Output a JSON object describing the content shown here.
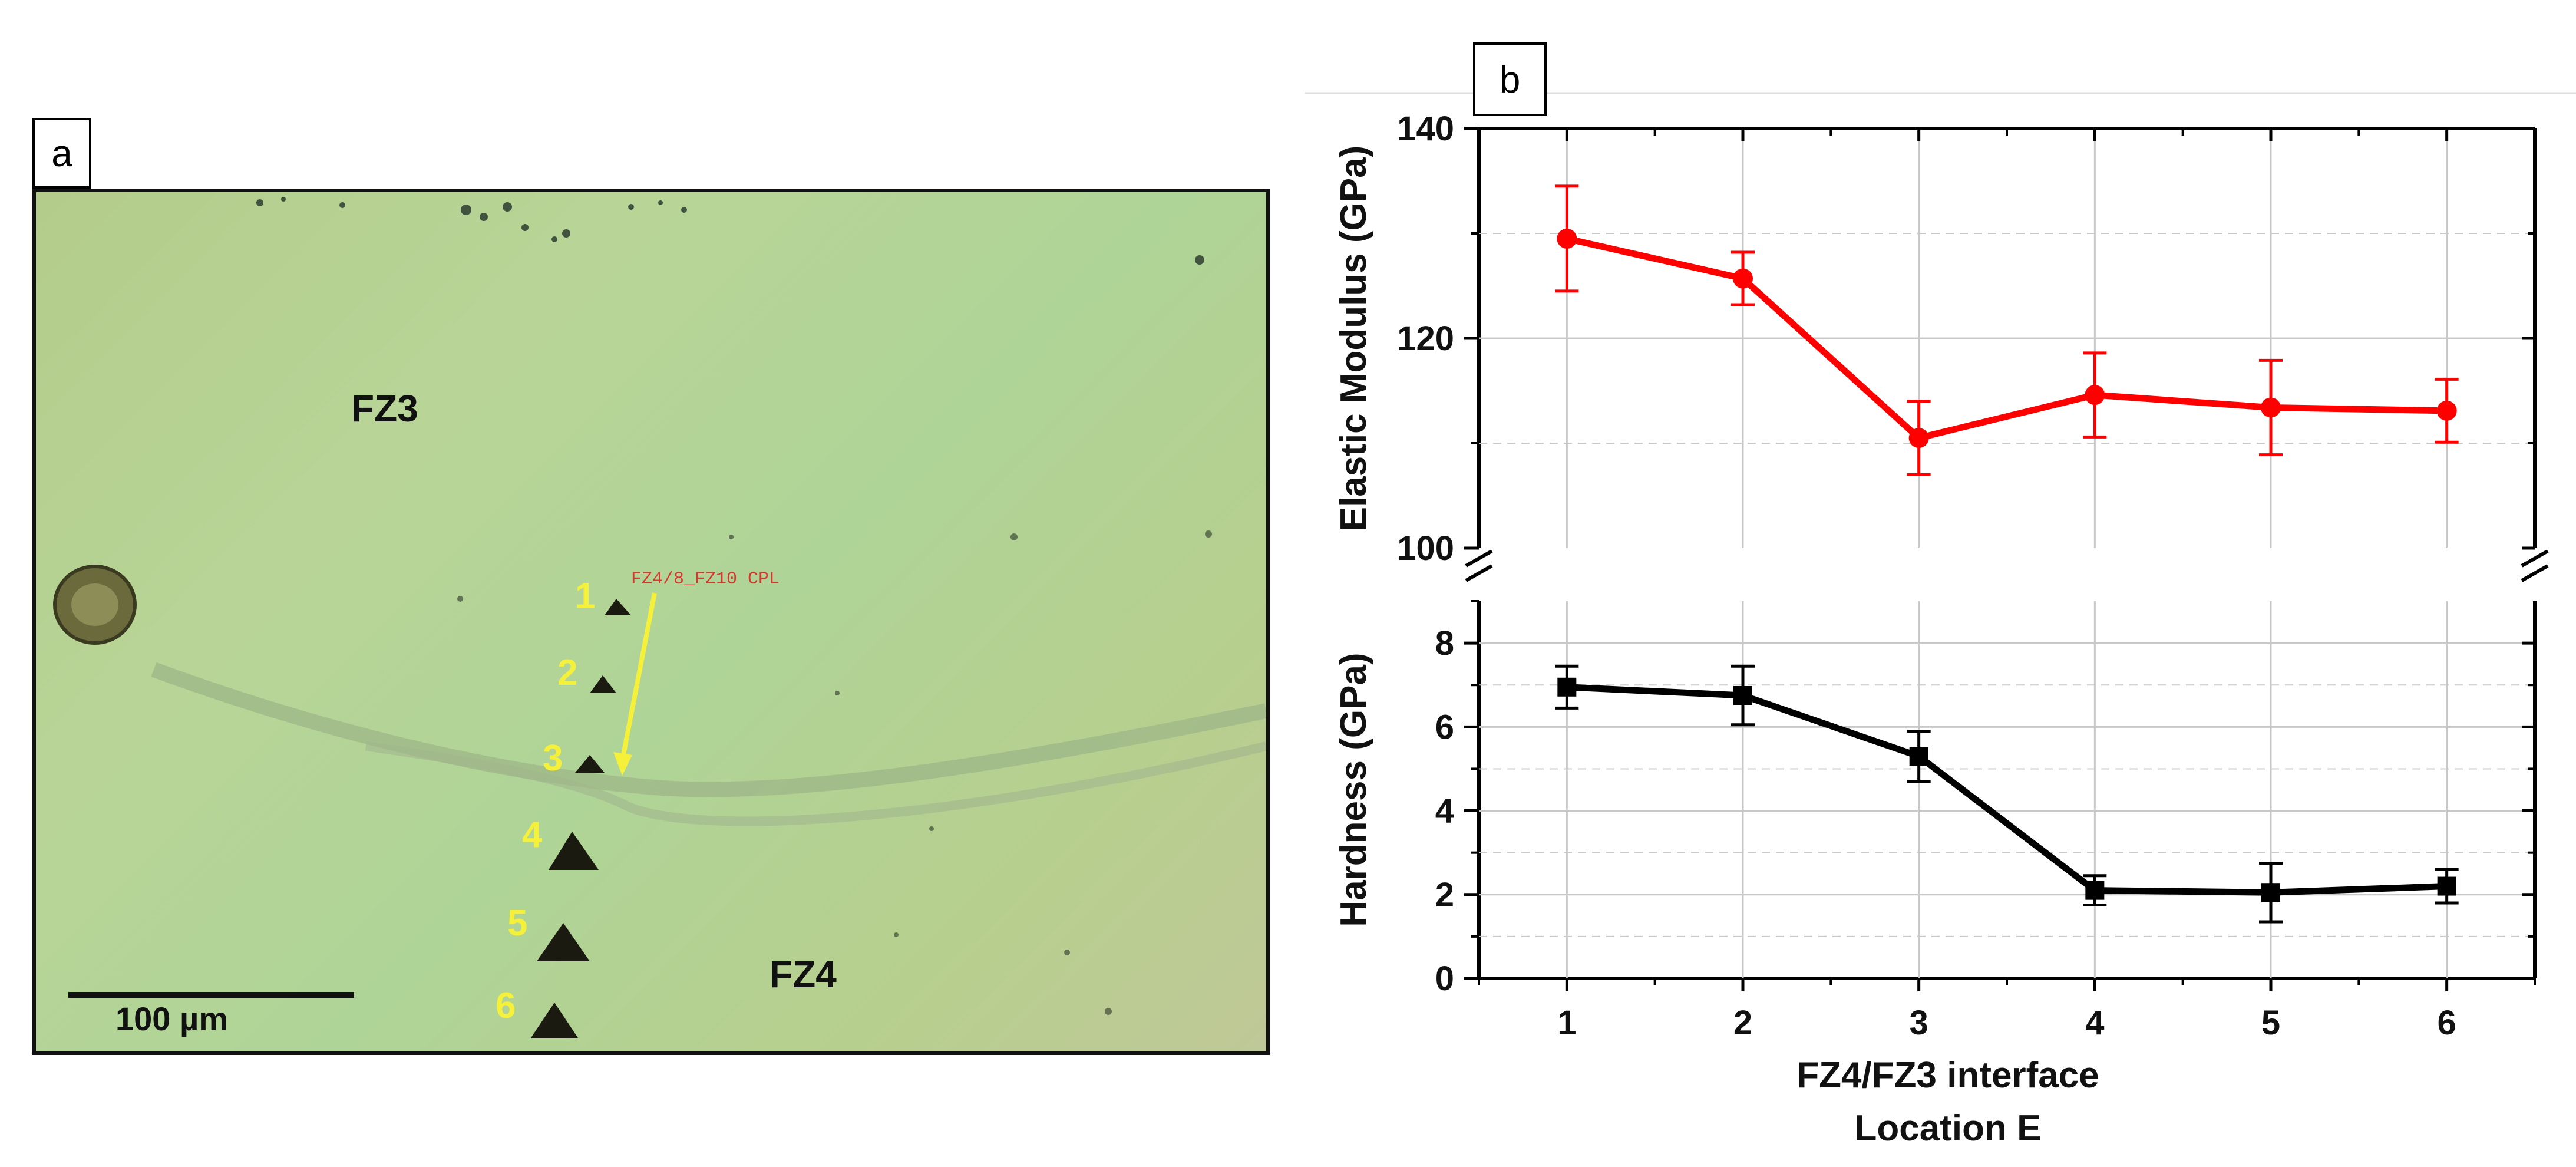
{
  "panel_a": {
    "label": "a",
    "zone_top": "FZ3",
    "zone_bottom": "FZ4",
    "indent_numbers": [
      "1",
      "2",
      "3",
      "4",
      "5",
      "6"
    ],
    "scale_bar_label": "100 µm",
    "indent_tag": "FZ4/8_FZ10 CPL",
    "arrow_color": "#f5f03a"
  },
  "panel_b": {
    "label": "b"
  },
  "chart_data": {
    "type": "line",
    "xlabel_line1": "FZ4/FZ3 interface",
    "xlabel_line2": "Location E",
    "x_ticks": [
      1,
      2,
      3,
      4,
      5,
      6
    ],
    "xlim": [
      0.5,
      6.5
    ],
    "grid": true,
    "panels": [
      {
        "name": "elastic_modulus",
        "ylabel": "Elastic Modulus (GPa)",
        "ylim": [
          100,
          140
        ],
        "y_ticks": [
          100,
          120,
          140
        ],
        "color": "#ff0000",
        "marker": "circle",
        "x": [
          1,
          2,
          3,
          4,
          5,
          6
        ],
        "values": [
          129.5,
          125.7,
          110.5,
          114.6,
          113.4,
          113.1
        ],
        "errors": [
          5.0,
          2.5,
          3.5,
          4.0,
          4.5,
          3.0
        ]
      },
      {
        "name": "hardness",
        "ylabel": "Hardness (GPa)",
        "ylim": [
          0,
          9
        ],
        "y_ticks": [
          0,
          2,
          4,
          6,
          8
        ],
        "color": "#000000",
        "marker": "square",
        "x": [
          1,
          2,
          3,
          4,
          5,
          6
        ],
        "values": [
          6.95,
          6.75,
          5.3,
          2.1,
          2.05,
          2.2
        ],
        "errors": [
          0.5,
          0.7,
          0.6,
          0.35,
          0.7,
          0.4
        ]
      }
    ]
  }
}
